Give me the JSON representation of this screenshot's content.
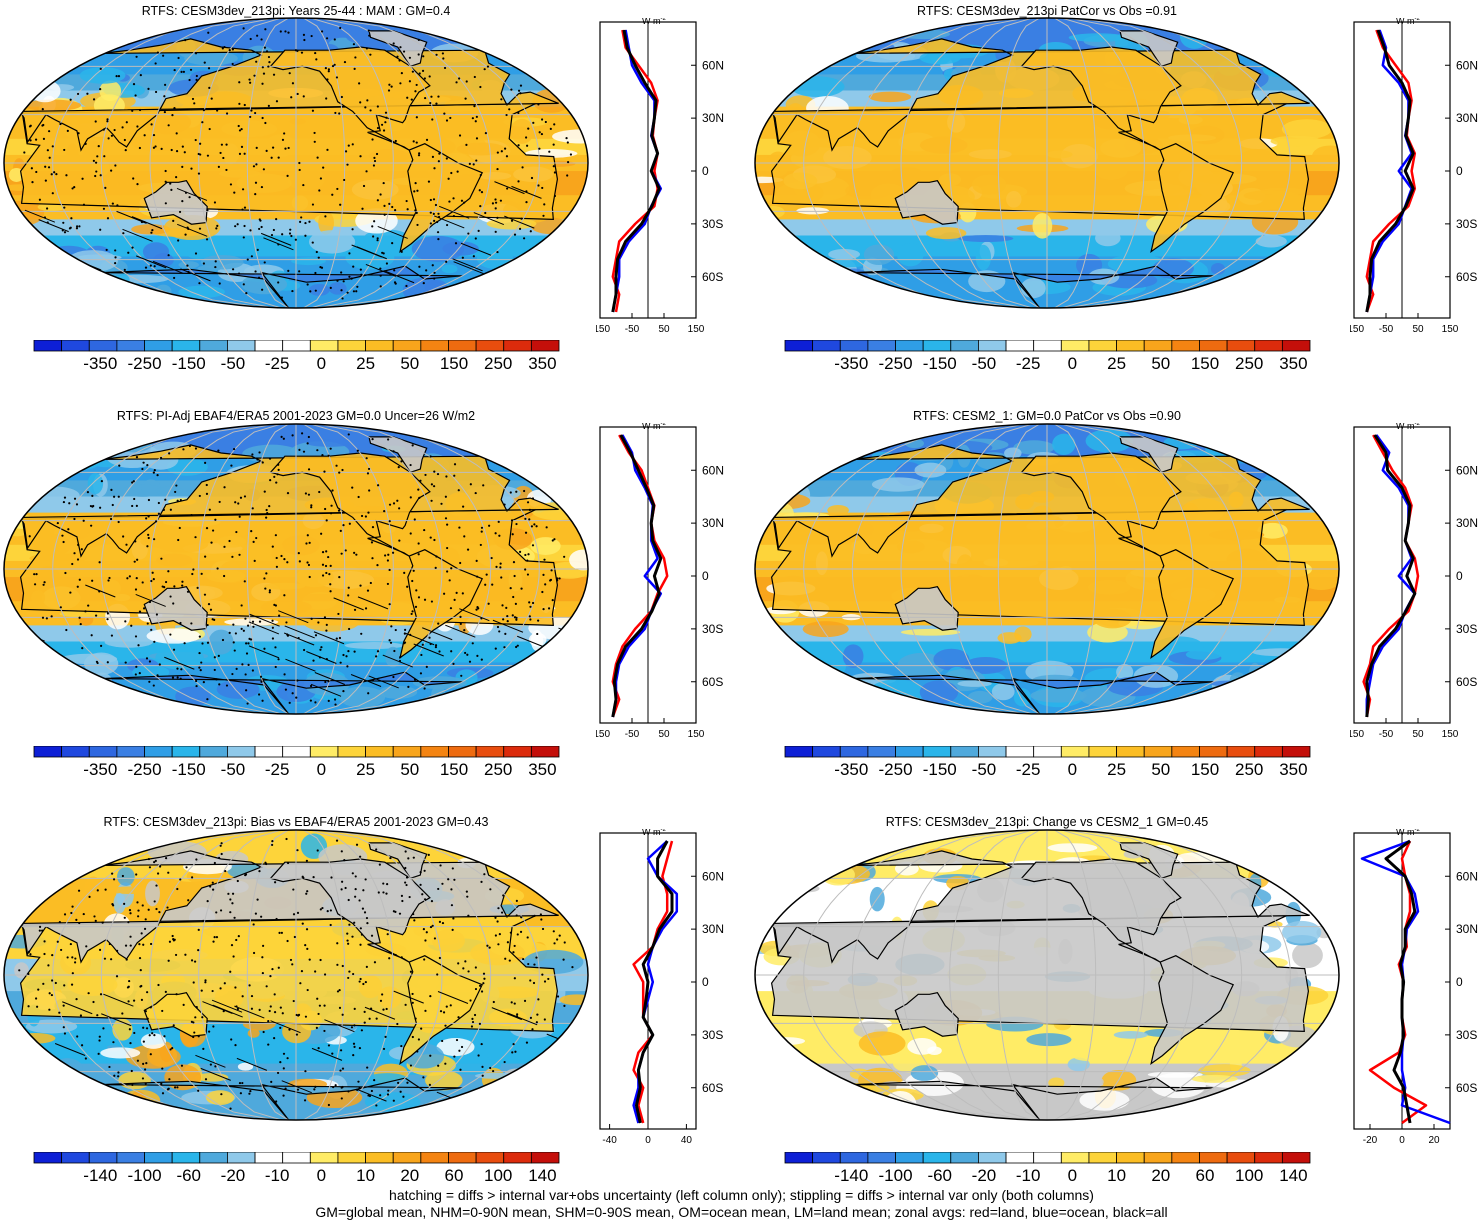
{
  "panels": [
    {
      "title": "RTFS: CESM3dev_213pi: Years 25-44 : MAM : GM=0.4",
      "map_kind": "field",
      "hatch": true,
      "stipple": true,
      "colorbar": [
        "-350",
        "-250",
        "-150",
        "-50",
        "-25",
        "0",
        "25",
        "50",
        "150",
        "250",
        "350"
      ],
      "zonal_unit": "W m",
      "zonal_xticks": [
        "-150",
        "-50",
        "50",
        "150"
      ],
      "zonal_yticks": [
        "60N",
        "30N",
        "0",
        "30S",
        "60S"
      ]
    },
    {
      "title": "RTFS: CESM3dev_213pi PatCor vs Obs =0.91",
      "map_kind": "field",
      "hatch": false,
      "stipple": false,
      "colorbar": [
        "-350",
        "-250",
        "-150",
        "-50",
        "-25",
        "0",
        "25",
        "50",
        "150",
        "250",
        "350"
      ],
      "zonal_unit": "W m",
      "zonal_xticks": [
        "-150",
        "-50",
        "50",
        "150"
      ],
      "zonal_yticks": [
        "60N",
        "30N",
        "0",
        "30S",
        "60S"
      ]
    },
    {
      "title": "RTFS: PI-Adj EBAF4/ERA5 2001-2023 GM=0.0 Uncer=26 W/m2",
      "map_kind": "field",
      "hatch": true,
      "stipple": true,
      "colorbar": [
        "-350",
        "-250",
        "-150",
        "-50",
        "-25",
        "0",
        "25",
        "50",
        "150",
        "250",
        "350"
      ],
      "zonal_unit": "W m",
      "zonal_xticks": [
        "-150",
        "-50",
        "50",
        "150"
      ],
      "zonal_yticks": [
        "60N",
        "30N",
        "0",
        "30S",
        "60S"
      ]
    },
    {
      "title": "RTFS: CESM2_1: GM=0.0 PatCor vs Obs =0.90",
      "map_kind": "field",
      "hatch": false,
      "stipple": false,
      "colorbar": [
        "-350",
        "-250",
        "-150",
        "-50",
        "-25",
        "0",
        "25",
        "50",
        "150",
        "250",
        "350"
      ],
      "zonal_unit": "W m",
      "zonal_xticks": [
        "-150",
        "-50",
        "50",
        "150"
      ],
      "zonal_yticks": [
        "60N",
        "30N",
        "0",
        "30S",
        "60S"
      ]
    },
    {
      "title": "RTFS: CESM3dev_213pi: Bias vs EBAF4/ERA5 2001-2023 GM=0.43",
      "map_kind": "diff",
      "hatch": true,
      "stipple": true,
      "colorbar": [
        "-140",
        "-100",
        "-60",
        "-20",
        "-10",
        "0",
        "10",
        "20",
        "60",
        "100",
        "140"
      ],
      "zonal_unit": "W m",
      "zonal_xticks": [
        "-40",
        "0",
        "40"
      ],
      "zonal_yticks": [
        "60N",
        "30N",
        "0",
        "30S",
        "60S"
      ]
    },
    {
      "title": "RTFS: CESM3dev_213pi: Change vs CESM2_1 GM=0.45",
      "map_kind": "diff2",
      "hatch": false,
      "stipple": false,
      "colorbar": [
        "-140",
        "-100",
        "-60",
        "-20",
        "-10",
        "0",
        "10",
        "20",
        "60",
        "100",
        "140"
      ],
      "zonal_unit": "W m",
      "zonal_xticks": [
        "-20",
        "0",
        "20"
      ],
      "zonal_yticks": [
        "60N",
        "30N",
        "0",
        "30S",
        "60S"
      ]
    }
  ],
  "colors": {
    "scale": [
      "#0d1fd6",
      "#1f48df",
      "#2e67e0",
      "#3a7fe3",
      "#2f9ee6",
      "#2ab5ea",
      "#4fa9dc",
      "#8fc9ea",
      "#ffffff",
      "#ffffff",
      "#ffec66",
      "#fdd43a",
      "#fbbd24",
      "#f8a51c",
      "#f48412",
      "#ee6b10",
      "#e84d0e",
      "#dc2b0c",
      "#c40f0a"
    ],
    "land_gray": "#c8c8c8",
    "curve_land": "#ff0000",
    "curve_ocean": "#0000ff",
    "curve_all": "#000000"
  },
  "footer": {
    "line1": "hatching = diffs > internal var+obs uncertainty (left column only); stippling = diffs > internal var only (both columns)",
    "line2": "GM=global mean, NHM=0-90N mean, SHM=0-90S mean, OM=ocean mean, LM=land mean; zonal avgs: red=land, blue=ocean, black=all"
  },
  "chart_data": [
    {
      "type": "heatmap",
      "title": "RTFS: CESM3dev_213pi: Years 25-44 : MAM : GM=0.4",
      "colorbar_ticks": [
        -350,
        -250,
        -150,
        -50,
        -25,
        0,
        25,
        50,
        150,
        250,
        350
      ],
      "zonal_profile": {
        "ylabels": [
          "60N",
          "30N",
          "0",
          "30S",
          "60S"
        ],
        "xlim": [
          -150,
          150
        ],
        "xlabel": "W m-2",
        "lat": [
          80,
          70,
          60,
          50,
          40,
          30,
          20,
          10,
          0,
          -10,
          -20,
          -30,
          -40,
          -50,
          -60,
          -70,
          -80
        ],
        "land": [
          -80,
          -70,
          -30,
          10,
          30,
          20,
          15,
          30,
          20,
          30,
          20,
          -40,
          -90,
          -100,
          -110,
          -90,
          -100
        ],
        "ocean": [
          -70,
          -60,
          -50,
          -20,
          20,
          20,
          10,
          30,
          10,
          40,
          10,
          -10,
          -60,
          -90,
          -90,
          -100,
          -110
        ],
        "all": [
          -75,
          -65,
          -40,
          -10,
          25,
          20,
          12,
          30,
          10,
          35,
          12,
          -20,
          -70,
          -95,
          -100,
          -100,
          -110
        ]
      }
    },
    {
      "type": "heatmap",
      "title": "RTFS: CESM3dev_213pi PatCor vs Obs =0.91",
      "colorbar_ticks": [
        -350,
        -250,
        -150,
        -50,
        -25,
        0,
        25,
        50,
        150,
        250,
        350
      ],
      "zonal_profile": {
        "ylabels": [
          "60N",
          "30N",
          "0",
          "30S",
          "60S"
        ],
        "xlim": [
          -150,
          150
        ],
        "xlabel": "W m-2",
        "lat": [
          80,
          70,
          60,
          50,
          40,
          30,
          20,
          10,
          0,
          -10,
          -20,
          -30,
          -40,
          -50,
          -60,
          -70,
          -80
        ],
        "land": [
          -80,
          -60,
          -20,
          20,
          30,
          20,
          15,
          40,
          30,
          40,
          20,
          -40,
          -90,
          -100,
          -110,
          -90,
          -110
        ],
        "ocean": [
          -70,
          -50,
          -60,
          -10,
          20,
          20,
          10,
          30,
          -10,
          30,
          10,
          -10,
          -60,
          -90,
          -90,
          -100,
          -110
        ],
        "all": [
          -75,
          -55,
          -40,
          0,
          25,
          20,
          12,
          35,
          10,
          35,
          12,
          -20,
          -70,
          -95,
          -100,
          -100,
          -110
        ]
      }
    },
    {
      "type": "heatmap",
      "title": "RTFS: PI-Adj EBAF4/ERA5 2001-2023 GM=0.0 Uncer=26 W/m2",
      "colorbar_ticks": [
        -350,
        -250,
        -150,
        -50,
        -25,
        0,
        25,
        50,
        150,
        250,
        350
      ],
      "zonal_profile": {
        "ylabels": [
          "60N",
          "30N",
          "0",
          "30S",
          "60S"
        ],
        "xlim": [
          -150,
          150
        ],
        "xlabel": "W m-2",
        "lat": [
          80,
          70,
          60,
          50,
          40,
          30,
          20,
          10,
          0,
          -10,
          -20,
          -30,
          -40,
          -50,
          -60,
          -70,
          -80
        ],
        "land": [
          -90,
          -60,
          -20,
          0,
          20,
          10,
          20,
          50,
          60,
          30,
          10,
          -40,
          -80,
          -100,
          -110,
          -90,
          -110
        ],
        "ocean": [
          -80,
          -50,
          -40,
          -10,
          15,
          10,
          10,
          30,
          -10,
          40,
          10,
          -10,
          -60,
          -90,
          -100,
          -100,
          -110
        ],
        "all": [
          -85,
          -55,
          -30,
          -5,
          18,
          10,
          15,
          40,
          20,
          35,
          12,
          -20,
          -70,
          -95,
          -105,
          -100,
          -110
        ]
      }
    },
    {
      "type": "heatmap",
      "title": "RTFS: CESM2_1: GM=0.0 PatCor vs Obs =0.90",
      "colorbar_ticks": [
        -350,
        -250,
        -150,
        -50,
        -25,
        0,
        25,
        50,
        150,
        250,
        350
      ],
      "zonal_profile": {
        "ylabels": [
          "60N",
          "30N",
          "0",
          "30S",
          "60S"
        ],
        "xlim": [
          -150,
          150
        ],
        "xlabel": "W m-2",
        "lat": [
          80,
          70,
          60,
          50,
          40,
          30,
          20,
          10,
          0,
          -10,
          -20,
          -30,
          -40,
          -50,
          -60,
          -70,
          -80
        ],
        "land": [
          -90,
          -60,
          -30,
          10,
          30,
          20,
          10,
          40,
          50,
          40,
          20,
          -40,
          -90,
          -100,
          -120,
          -100,
          -110
        ],
        "ocean": [
          -80,
          -40,
          -60,
          -10,
          20,
          20,
          10,
          30,
          -10,
          40,
          10,
          -10,
          -60,
          -90,
          -100,
          -110,
          -110
        ],
        "all": [
          -85,
          -50,
          -45,
          0,
          25,
          20,
          10,
          35,
          15,
          40,
          12,
          -20,
          -70,
          -95,
          -110,
          -105,
          -110
        ]
      }
    },
    {
      "type": "heatmap",
      "title": "RTFS: CESM3dev_213pi: Bias vs EBAF4/ERA5 2001-2023 GM=0.43",
      "colorbar_ticks": [
        -140,
        -100,
        -60,
        -20,
        -10,
        0,
        10,
        20,
        60,
        100,
        140
      ],
      "zonal_profile": {
        "ylabels": [
          "60N",
          "30N",
          "0",
          "30S",
          "60S"
        ],
        "xlim": [
          -50,
          50
        ],
        "xlabel": "W m-2",
        "lat": [
          80,
          70,
          60,
          50,
          40,
          30,
          20,
          10,
          0,
          -10,
          -20,
          -30,
          -40,
          -50,
          -60,
          -70,
          -80
        ],
        "land": [
          25,
          20,
          15,
          20,
          20,
          10,
          5,
          -15,
          -5,
          -5,
          -5,
          5,
          -10,
          -15,
          -5,
          -10,
          -5
        ],
        "ocean": [
          20,
          0,
          10,
          30,
          30,
          15,
          5,
          0,
          5,
          0,
          -5,
          5,
          -5,
          -10,
          -10,
          -15,
          -10
        ],
        "all": [
          20,
          10,
          10,
          25,
          25,
          12,
          5,
          -5,
          0,
          -2,
          -5,
          5,
          -5,
          -10,
          -8,
          -12,
          -8
        ]
      }
    },
    {
      "type": "heatmap",
      "title": "RTFS: CESM3dev_213pi: Change vs CESM2_1 GM=0.45",
      "colorbar_ticks": [
        -140,
        -100,
        -60,
        -20,
        -10,
        0,
        10,
        20,
        60,
        100,
        140
      ],
      "zonal_profile": {
        "ylabels": [
          "60N",
          "30N",
          "0",
          "30S",
          "60S"
        ],
        "xlim": [
          -30,
          30
        ],
        "xlabel": "W m-2",
        "lat": [
          80,
          70,
          60,
          50,
          40,
          30,
          20,
          10,
          0,
          -10,
          -20,
          -30,
          -40,
          -50,
          -60,
          -70,
          -80
        ],
        "land": [
          5,
          0,
          2,
          5,
          5,
          2,
          3,
          -2,
          1,
          0,
          0,
          2,
          -2,
          -20,
          -5,
          15,
          0
        ],
        "ocean": [
          5,
          -25,
          2,
          8,
          10,
          3,
          2,
          0,
          1,
          0,
          0,
          1,
          0,
          0,
          2,
          0,
          30
        ],
        "all": [
          5,
          -10,
          2,
          6,
          8,
          2,
          2,
          -1,
          1,
          0,
          0,
          1,
          -1,
          -5,
          1,
          3,
          5
        ]
      }
    }
  ]
}
